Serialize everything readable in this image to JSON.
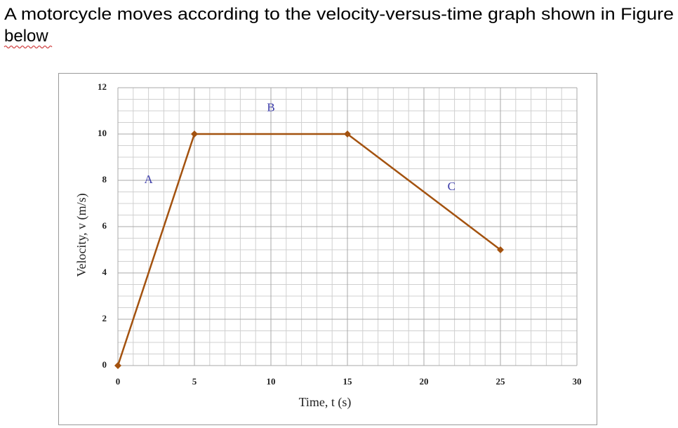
{
  "question": {
    "lines": [
      "A motorcycle moves according to the velocity-versus-time graph shown in Figure",
      "below"
    ]
  },
  "chart_data": {
    "type": "line",
    "x_label": "Time, t (s)",
    "y_label": "Velocity, v (m/s)",
    "x": [
      0,
      5,
      15,
      25
    ],
    "series": [
      {
        "values": [
          0,
          10,
          10,
          5
        ],
        "color": "#a3520f"
      }
    ],
    "annotations": [
      "A",
      "B",
      "C"
    ],
    "xlim": [
      0,
      30
    ],
    "xticks": [
      0,
      5,
      10,
      15,
      20,
      25,
      30
    ],
    "ylim": [
      0,
      12
    ],
    "yticks": [
      0,
      2,
      4,
      6,
      8,
      10,
      12
    ],
    "grid": true
  }
}
